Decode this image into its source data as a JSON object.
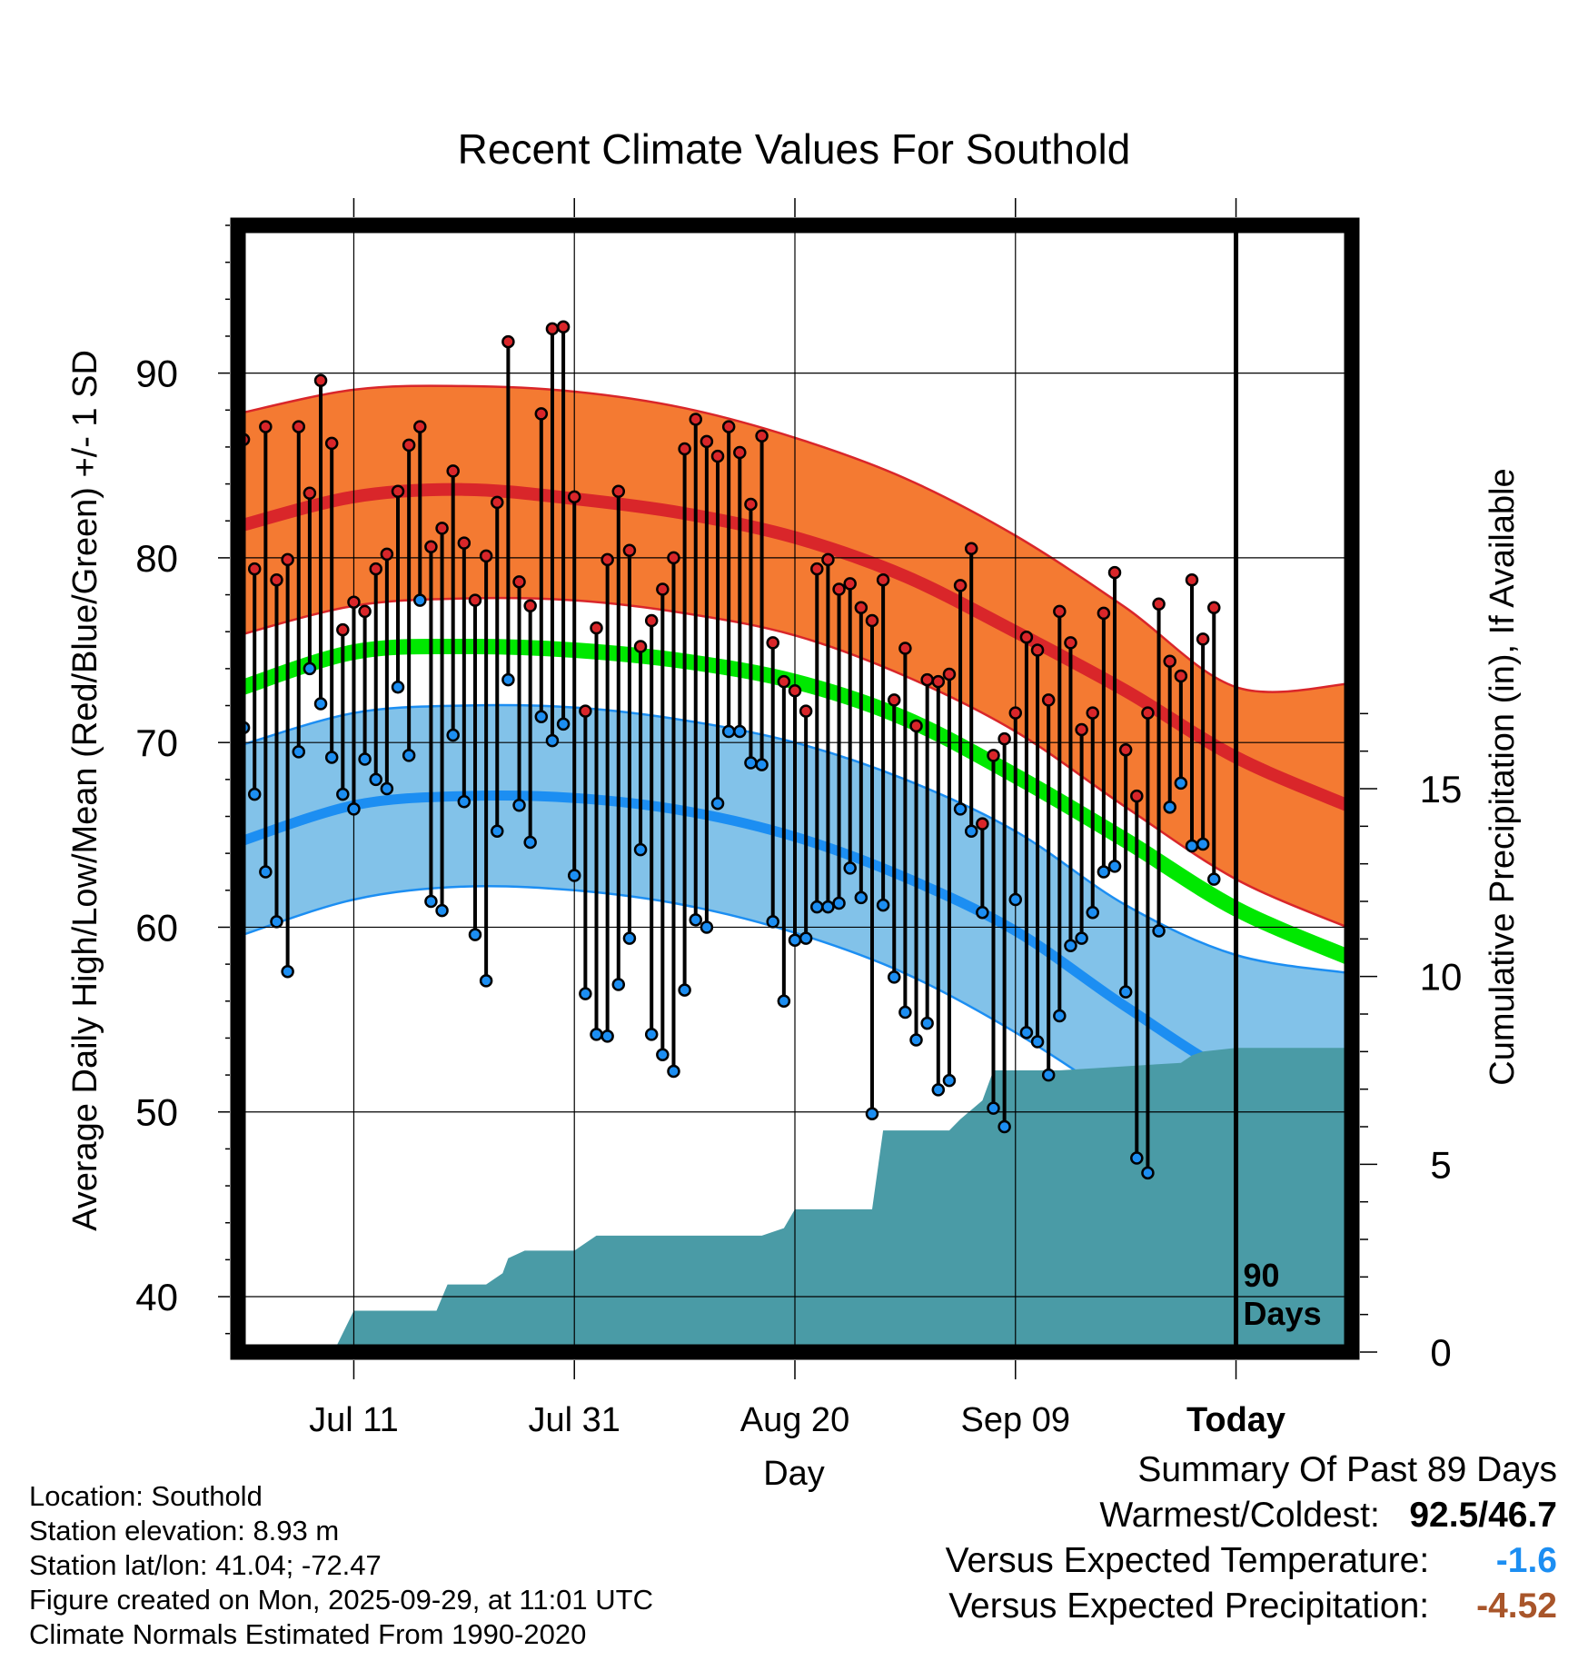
{
  "chart_data": {
    "type": "line",
    "title": "Recent Climate Values For Southold",
    "xlabel": "Day",
    "ylabel": "Average Daily High/Low/Mean (Red/Blue/Green) +/- 1 SD",
    "y2label": "Cumulative Precipitation (in), If Available",
    "ylim": [
      37,
      98
    ],
    "y2lim": [
      0,
      30
    ],
    "yticks": [
      40,
      50,
      60,
      70,
      80,
      90
    ],
    "y2ticks": [
      0,
      5,
      10,
      15
    ],
    "xlim": [
      -0.5,
      100.5
    ],
    "xtick_labels": [
      {
        "day": 10,
        "label": "Jul 11"
      },
      {
        "day": 30,
        "label": "Jul 31"
      },
      {
        "day": 50,
        "label": "Aug 20"
      },
      {
        "day": 70,
        "label": "Sep 09"
      },
      {
        "day": 90,
        "label": "Today"
      }
    ],
    "today_day": 90,
    "today_annotation": [
      "90",
      "Days"
    ],
    "grid": true,
    "daily_highs": [
      86.4,
      79.4,
      87.1,
      78.8,
      79.9,
      87.1,
      83.5,
      89.6,
      86.2,
      76.1,
      77.6,
      77.1,
      79.4,
      80.2,
      83.6,
      86.1,
      87.1,
      80.6,
      81.6,
      84.7,
      80.8,
      77.7,
      80.1,
      83.0,
      91.7,
      78.7,
      77.4,
      87.8,
      92.4,
      92.5,
      83.3,
      71.7,
      76.2,
      79.9,
      83.6,
      80.4,
      75.2,
      76.6,
      78.3,
      80.0,
      85.9,
      87.5,
      86.3,
      85.5,
      87.1,
      85.7,
      82.9,
      86.6,
      75.4,
      73.3,
      72.8,
      71.7,
      79.4,
      79.9,
      78.3,
      78.6,
      77.3,
      76.6,
      78.8,
      72.3,
      75.1,
      70.9,
      73.4,
      73.3,
      73.7,
      78.5,
      80.5,
      65.6,
      69.3,
      70.2,
      71.6,
      75.7,
      75.0,
      72.3,
      77.1,
      75.4,
      70.7,
      71.6,
      77.0,
      79.2,
      69.6,
      67.1,
      71.6,
      77.5,
      74.4,
      73.6,
      78.8,
      75.6,
      77.3
    ],
    "daily_lows": [
      70.8,
      67.2,
      63.0,
      60.3,
      57.6,
      69.5,
      74.0,
      72.1,
      69.2,
      67.2,
      66.4,
      69.1,
      68.0,
      67.5,
      73.0,
      69.3,
      77.7,
      61.4,
      60.9,
      70.4,
      66.8,
      59.6,
      57.1,
      65.2,
      73.4,
      66.6,
      64.6,
      71.4,
      70.1,
      71.0,
      62.8,
      56.4,
      54.2,
      54.1,
      56.9,
      59.4,
      64.2,
      54.2,
      53.1,
      52.2,
      56.6,
      60.4,
      60.0,
      66.7,
      70.6,
      70.6,
      68.9,
      68.8,
      60.3,
      56.0,
      59.3,
      59.4,
      61.1,
      61.1,
      61.3,
      63.2,
      61.6,
      49.9,
      61.2,
      57.3,
      55.4,
      53.9,
      54.8,
      51.2,
      51.7,
      66.4,
      65.2,
      60.8,
      50.2,
      49.2,
      61.5,
      54.3,
      53.8,
      52.0,
      55.2,
      59.0,
      59.4,
      60.8,
      63.0,
      63.3,
      56.5,
      47.5,
      46.7,
      59.8,
      66.5,
      67.8,
      64.4,
      64.5,
      62.6
    ],
    "normal_high": {
      "day": [
        -0.5,
        10,
        20,
        30,
        40,
        50,
        60,
        70,
        80,
        90,
        100.5
      ],
      "mean": [
        81.7,
        83.3,
        83.7,
        83.2,
        82.4,
        81.1,
        79.0,
        76.0,
        72.8,
        69.2,
        66.5
      ],
      "upper": [
        87.8,
        89.1,
        89.3,
        89.0,
        88.1,
        86.5,
        84.3,
        81.2,
        77.3,
        73.0,
        73.2
      ],
      "lower": [
        75.8,
        77.4,
        77.8,
        77.7,
        77.0,
        75.8,
        73.6,
        70.6,
        66.5,
        62.6,
        59.9
      ]
    },
    "normal_mean": {
      "day": [
        -0.5,
        10,
        20,
        30,
        40,
        50,
        60,
        70,
        80,
        90,
        100.5
      ],
      "values": [
        72.9,
        74.9,
        75.2,
        75.0,
        74.4,
        73.3,
        71.3,
        68.2,
        64.7,
        61.0,
        58.3
      ]
    },
    "normal_low": {
      "day": [
        -0.5,
        10,
        20,
        30,
        40,
        50,
        60,
        70,
        80,
        90,
        100.5
      ],
      "mean": [
        64.6,
        66.6,
        67.1,
        67.0,
        66.3,
        64.9,
        62.7,
        59.8,
        55.7,
        52.0,
        50.1
      ],
      "upper": [
        69.8,
        71.6,
        72.0,
        71.9,
        71.2,
        70.0,
        68.0,
        65.2,
        61.2,
        58.5,
        57.5
      ],
      "lower": [
        59.5,
        61.5,
        62.2,
        62.0,
        61.2,
        59.7,
        57.5,
        54.3,
        50.4,
        46.3,
        44.9
      ]
    },
    "cumulative_precip": {
      "day": [
        0,
        7.5,
        8.5,
        10,
        17.5,
        18.5,
        22,
        23.5,
        24,
        25.5,
        28.5,
        30,
        32,
        47,
        49,
        50,
        52,
        57,
        58,
        64,
        65,
        67,
        68,
        74,
        85,
        86,
        87,
        90,
        100.5
      ],
      "values": [
        0.1,
        0.1,
        0.2,
        1.1,
        1.1,
        1.8,
        1.8,
        2.1,
        2.5,
        2.7,
        2.7,
        2.7,
        3.1,
        3.1,
        3.3,
        3.8,
        3.8,
        3.8,
        5.9,
        5.9,
        6.2,
        6.7,
        7.5,
        7.5,
        7.7,
        7.9,
        8.0,
        8.1,
        8.1
      ]
    },
    "series_colors": {
      "high": "#d9262a",
      "high_band": "#f47a32",
      "low": "#1c8ef2",
      "low_band": "#82c2e9",
      "mean": "#00e800",
      "precip": "#4a9ba6"
    }
  },
  "location": "Location: Southold",
  "elevation": "Station elevation: 8.93 m",
  "latlon": "Station lat/lon: 41.04; -72.47",
  "created": "Figure created on Mon, 2025-09-29, at 11:01 UTC",
  "normals": "Climate Normals Estimated From 1990-2020",
  "summary": {
    "title": "Summary Of Past 89 Days",
    "warm_cold_label": "Warmest/Coldest:",
    "warmest": "92.5",
    "slash": "/",
    "coldest": "46.7",
    "temp_label": "Versus Expected Temperature:",
    "temp_value": "-1.6",
    "temp_color": "#1c8ef2",
    "precip_label": "Versus Expected Precipitation:",
    "precip_value": "-4.52",
    "precip_color": "#a8552a"
  }
}
